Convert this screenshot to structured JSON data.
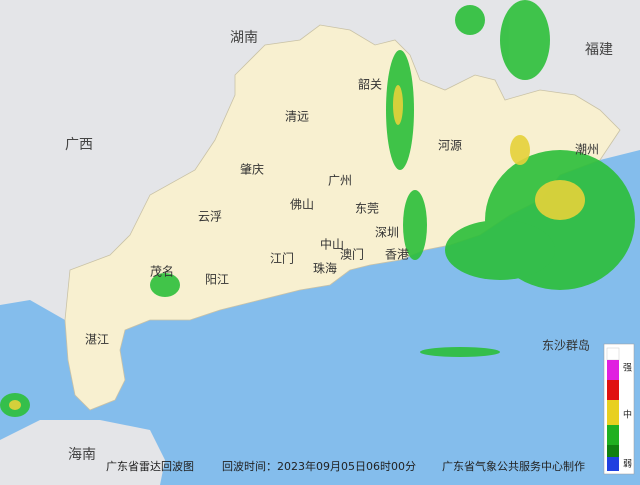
{
  "map": {
    "labels": [
      "湖南",
      "福建",
      "韶关",
      "广西",
      "清远",
      "河源",
      "潮州",
      "肇庆",
      "广州",
      "佛山",
      "东莞",
      "云浮",
      "深圳",
      "中山",
      "香港",
      "江门",
      "澳门",
      "珠海",
      "阳江",
      "茂名",
      "湛江",
      "海南",
      "东沙群岛"
    ]
  },
  "legend": {
    "labels": [
      "强",
      "中",
      "弱"
    ]
  },
  "footer": {
    "title": "广东省雷达回波图",
    "time": "回波时间：2023年09月05日06时00分",
    "credit": "广东省气象公共服务中心制作"
  }
}
